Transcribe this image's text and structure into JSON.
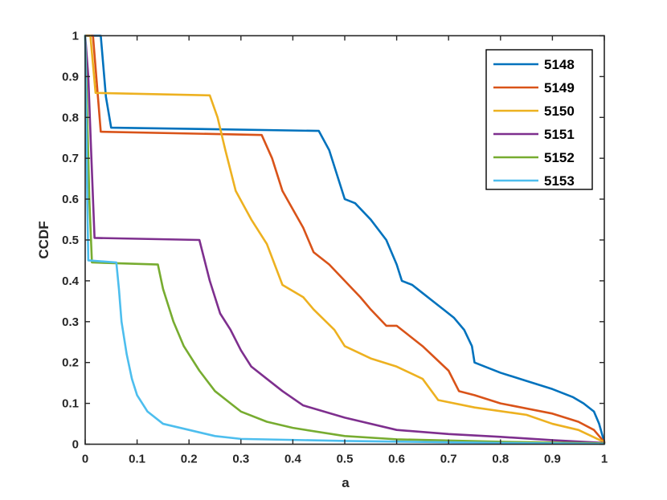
{
  "chart_data": {
    "type": "line",
    "title": "",
    "xlabel": "a",
    "ylabel": "CCDF",
    "xlim": [
      0,
      1
    ],
    "ylim": [
      0,
      1
    ],
    "xticks": [
      "0",
      "0.1",
      "0.2",
      "0.3",
      "0.4",
      "0.5",
      "0.6",
      "0.7",
      "0.8",
      "0.9",
      "1"
    ],
    "yticks": [
      "0",
      "0.1",
      "0.2",
      "0.3",
      "0.4",
      "0.5",
      "0.6",
      "0.7",
      "0.8",
      "0.9",
      "1"
    ],
    "grid": false,
    "legend_position": "top-right",
    "series": [
      {
        "name": "5148",
        "color": "#0072BD",
        "x": [
          0,
          0.03,
          0.04,
          0.05,
          0.45,
          0.47,
          0.5,
          0.52,
          0.55,
          0.58,
          0.6,
          0.61,
          0.63,
          0.65,
          0.67,
          0.69,
          0.71,
          0.73,
          0.745,
          0.75,
          0.77,
          0.8,
          0.85,
          0.9,
          0.94,
          0.96,
          0.98,
          0.99,
          1.0
        ],
        "y": [
          1.0,
          1.0,
          0.85,
          0.775,
          0.767,
          0.72,
          0.6,
          0.59,
          0.55,
          0.5,
          0.44,
          0.4,
          0.39,
          0.37,
          0.35,
          0.33,
          0.31,
          0.28,
          0.24,
          0.2,
          0.19,
          0.175,
          0.155,
          0.135,
          0.115,
          0.1,
          0.08,
          0.05,
          0.005
        ]
      },
      {
        "name": "5149",
        "color": "#D95319",
        "x": [
          0,
          0.015,
          0.03,
          0.34,
          0.36,
          0.38,
          0.42,
          0.44,
          0.47,
          0.5,
          0.53,
          0.55,
          0.58,
          0.6,
          0.65,
          0.7,
          0.72,
          0.75,
          0.8,
          0.9,
          0.95,
          0.98,
          1.0
        ],
        "y": [
          1.0,
          1.0,
          0.765,
          0.757,
          0.7,
          0.62,
          0.53,
          0.47,
          0.44,
          0.4,
          0.36,
          0.33,
          0.29,
          0.29,
          0.24,
          0.18,
          0.13,
          0.12,
          0.1,
          0.075,
          0.055,
          0.035,
          0.005
        ]
      },
      {
        "name": "5150",
        "color": "#EDB120",
        "x": [
          0,
          0.01,
          0.02,
          0.24,
          0.255,
          0.27,
          0.29,
          0.32,
          0.35,
          0.38,
          0.42,
          0.44,
          0.48,
          0.5,
          0.55,
          0.6,
          0.65,
          0.68,
          0.75,
          0.85,
          0.9,
          0.95,
          1.0
        ],
        "y": [
          1.0,
          1.0,
          0.86,
          0.854,
          0.8,
          0.72,
          0.62,
          0.55,
          0.49,
          0.39,
          0.36,
          0.33,
          0.28,
          0.24,
          0.21,
          0.19,
          0.16,
          0.108,
          0.09,
          0.072,
          0.05,
          0.035,
          0.005
        ]
      },
      {
        "name": "5151",
        "color": "#7E2F8E",
        "x": [
          0,
          0.006,
          0.012,
          0.018,
          0.22,
          0.24,
          0.26,
          0.28,
          0.3,
          0.32,
          0.35,
          0.38,
          0.42,
          0.5,
          0.6,
          0.7,
          0.8,
          0.9,
          1.0
        ],
        "y": [
          1.0,
          0.9,
          0.7,
          0.505,
          0.5,
          0.4,
          0.32,
          0.28,
          0.23,
          0.19,
          0.16,
          0.13,
          0.095,
          0.065,
          0.035,
          0.025,
          0.018,
          0.01,
          0.003
        ]
      },
      {
        "name": "5152",
        "color": "#77AC30",
        "x": [
          0,
          0.004,
          0.008,
          0.013,
          0.14,
          0.15,
          0.17,
          0.19,
          0.22,
          0.25,
          0.28,
          0.3,
          0.35,
          0.4,
          0.5,
          0.6,
          0.8,
          1.0
        ],
        "y": [
          1.0,
          0.8,
          0.6,
          0.445,
          0.44,
          0.38,
          0.3,
          0.24,
          0.18,
          0.13,
          0.1,
          0.08,
          0.055,
          0.04,
          0.02,
          0.012,
          0.006,
          0.002
        ]
      },
      {
        "name": "5153",
        "color": "#4DBEEE",
        "x": [
          0,
          0.002,
          0.004,
          0.006,
          0.06,
          0.065,
          0.07,
          0.08,
          0.09,
          0.1,
          0.12,
          0.15,
          0.2,
          0.25,
          0.3,
          0.5,
          0.8,
          1.0
        ],
        "y": [
          1.0,
          0.8,
          0.6,
          0.45,
          0.445,
          0.38,
          0.3,
          0.22,
          0.16,
          0.12,
          0.08,
          0.05,
          0.035,
          0.02,
          0.013,
          0.008,
          0.003,
          0.001
        ]
      }
    ]
  }
}
